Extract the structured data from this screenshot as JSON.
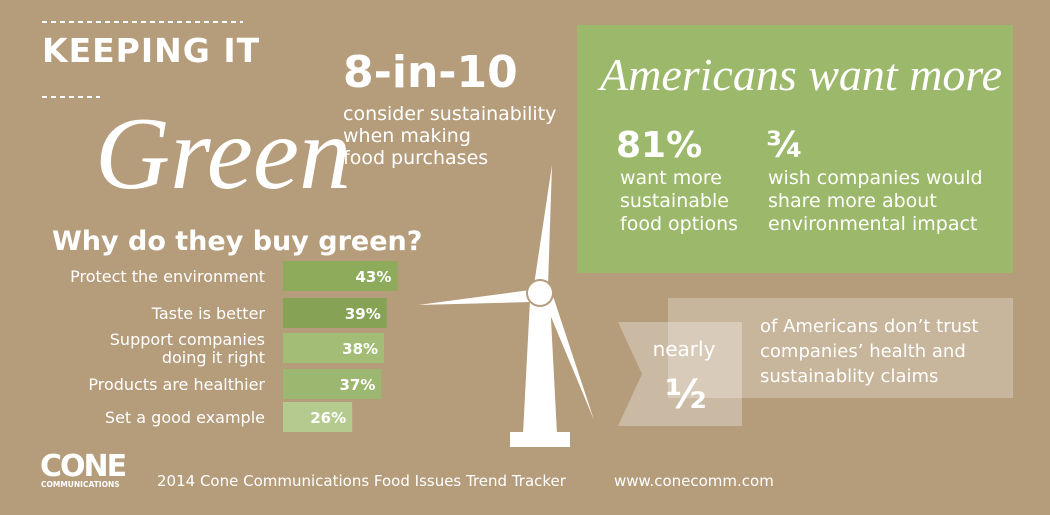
{
  "header": {
    "kicker": "KEEPING IT",
    "title": "Green"
  },
  "stat_main": {
    "value": "8-in-10",
    "lines": [
      "consider sustainability",
      "when making",
      "food purchases"
    ]
  },
  "green_box": {
    "title": "Americans want more",
    "stats": [
      {
        "value": "81%",
        "lines": [
          "want more",
          "sustainable",
          "food options"
        ]
      },
      {
        "value": "¾",
        "lines": [
          "wish companies would",
          "share more about",
          "environmental impact"
        ]
      }
    ]
  },
  "why_buy": {
    "title": "Why do they buy green?",
    "items": [
      {
        "label": [
          "Protect the environment"
        ],
        "value": 43,
        "value_label": "43%"
      },
      {
        "label": [
          "Taste is better"
        ],
        "value": 39,
        "value_label": "39%"
      },
      {
        "label": [
          "Support companies",
          "doing it right"
        ],
        "value": 38,
        "value_label": "38%"
      },
      {
        "label": [
          "Products are healthier"
        ],
        "value": 37,
        "value_label": "37%"
      },
      {
        "label": [
          "Set a good example"
        ],
        "value": 26,
        "value_label": "26%"
      }
    ]
  },
  "trust": {
    "prefix": "nearly",
    "value": "½",
    "lines": [
      "of Americans don’t trust",
      "companies’ health and",
      "sustainablity claims"
    ]
  },
  "footer": {
    "logo": "CONE",
    "logo_sub": "COMMUNICATIONS",
    "source": "2014 Cone Communications Food Issues Trend Tracker",
    "url": "www.conecomm.com"
  }
}
